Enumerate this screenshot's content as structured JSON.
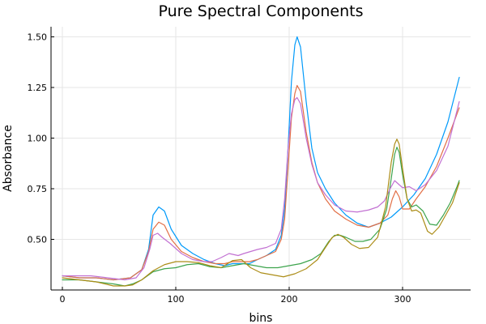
{
  "chart_data": {
    "type": "line",
    "title": "Pure Spectral Components",
    "xlabel": "bins",
    "ylabel": "Absorbance",
    "xlim": [
      -10,
      360
    ],
    "ylim": [
      0.25,
      1.55
    ],
    "xticks": [
      0,
      100,
      200,
      300
    ],
    "yticks": [
      0.5,
      0.75,
      1.0,
      1.25,
      1.5
    ],
    "xtick_labels": [
      "0",
      "100",
      "200",
      "300"
    ],
    "ytick_labels": [
      "0.50",
      "0.75",
      "1.00",
      "1.25",
      "1.50"
    ],
    "grid": true,
    "legend": "none",
    "series": [
      {
        "color": "#009AFA",
        "points": [
          [
            0,
            0.32
          ],
          [
            15,
            0.31
          ],
          [
            30,
            0.31
          ],
          [
            45,
            0.3
          ],
          [
            60,
            0.31
          ],
          [
            70,
            0.35
          ],
          [
            76,
            0.45
          ],
          [
            80,
            0.62
          ],
          [
            85,
            0.66
          ],
          [
            90,
            0.64
          ],
          [
            96,
            0.55
          ],
          [
            105,
            0.47
          ],
          [
            115,
            0.43
          ],
          [
            125,
            0.4
          ],
          [
            135,
            0.38
          ],
          [
            143,
            0.37
          ],
          [
            150,
            0.38
          ],
          [
            158,
            0.38
          ],
          [
            165,
            0.38
          ],
          [
            172,
            0.4
          ],
          [
            180,
            0.42
          ],
          [
            188,
            0.45
          ],
          [
            193,
            0.52
          ],
          [
            196,
            0.65
          ],
          [
            199,
            0.95
          ],
          [
            202,
            1.28
          ],
          [
            205,
            1.46
          ],
          [
            207,
            1.5
          ],
          [
            210,
            1.45
          ],
          [
            215,
            1.18
          ],
          [
            220,
            0.95
          ],
          [
            225,
            0.83
          ],
          [
            232,
            0.75
          ],
          [
            240,
            0.68
          ],
          [
            250,
            0.62
          ],
          [
            260,
            0.58
          ],
          [
            270,
            0.56
          ],
          [
            280,
            0.58
          ],
          [
            290,
            0.61
          ],
          [
            300,
            0.66
          ],
          [
            310,
            0.72
          ],
          [
            320,
            0.8
          ],
          [
            330,
            0.92
          ],
          [
            340,
            1.08
          ],
          [
            350,
            1.3
          ]
        ]
      },
      {
        "color": "#E26F46",
        "points": [
          [
            0,
            0.32
          ],
          [
            15,
            0.31
          ],
          [
            30,
            0.31
          ],
          [
            45,
            0.3
          ],
          [
            60,
            0.31
          ],
          [
            70,
            0.35
          ],
          [
            76,
            0.44
          ],
          [
            80,
            0.55
          ],
          [
            85,
            0.585
          ],
          [
            90,
            0.57
          ],
          [
            96,
            0.5
          ],
          [
            105,
            0.44
          ],
          [
            115,
            0.41
          ],
          [
            125,
            0.39
          ],
          [
            135,
            0.38
          ],
          [
            143,
            0.38
          ],
          [
            150,
            0.39
          ],
          [
            158,
            0.39
          ],
          [
            165,
            0.39
          ],
          [
            172,
            0.4
          ],
          [
            180,
            0.42
          ],
          [
            188,
            0.44
          ],
          [
            193,
            0.5
          ],
          [
            196,
            0.6
          ],
          [
            199,
            0.85
          ],
          [
            202,
            1.1
          ],
          [
            205,
            1.22
          ],
          [
            207,
            1.26
          ],
          [
            210,
            1.23
          ],
          [
            215,
            1.03
          ],
          [
            220,
            0.88
          ],
          [
            225,
            0.78
          ],
          [
            232,
            0.7
          ],
          [
            240,
            0.64
          ],
          [
            250,
            0.6
          ],
          [
            260,
            0.57
          ],
          [
            270,
            0.56
          ],
          [
            280,
            0.58
          ],
          [
            287,
            0.62
          ],
          [
            291,
            0.7
          ],
          [
            294,
            0.74
          ],
          [
            297,
            0.71
          ],
          [
            300,
            0.65
          ],
          [
            306,
            0.65
          ],
          [
            312,
            0.7
          ],
          [
            320,
            0.76
          ],
          [
            330,
            0.86
          ],
          [
            340,
            1.0
          ],
          [
            350,
            1.15
          ]
        ]
      },
      {
        "color": "#3DA44D",
        "points": [
          [
            0,
            0.3
          ],
          [
            15,
            0.3
          ],
          [
            30,
            0.29
          ],
          [
            45,
            0.28
          ],
          [
            55,
            0.27
          ],
          [
            62,
            0.28
          ],
          [
            70,
            0.3
          ],
          [
            80,
            0.34
          ],
          [
            90,
            0.355
          ],
          [
            100,
            0.36
          ],
          [
            110,
            0.375
          ],
          [
            120,
            0.38
          ],
          [
            130,
            0.365
          ],
          [
            140,
            0.36
          ],
          [
            150,
            0.37
          ],
          [
            160,
            0.38
          ],
          [
            170,
            0.37
          ],
          [
            180,
            0.36
          ],
          [
            190,
            0.36
          ],
          [
            200,
            0.37
          ],
          [
            210,
            0.38
          ],
          [
            220,
            0.4
          ],
          [
            228,
            0.43
          ],
          [
            235,
            0.49
          ],
          [
            240,
            0.52
          ],
          [
            245,
            0.52
          ],
          [
            250,
            0.51
          ],
          [
            258,
            0.49
          ],
          [
            265,
            0.49
          ],
          [
            272,
            0.5
          ],
          [
            280,
            0.55
          ],
          [
            286,
            0.65
          ],
          [
            290,
            0.8
          ],
          [
            293,
            0.92
          ],
          [
            295,
            0.955
          ],
          [
            297,
            0.93
          ],
          [
            300,
            0.82
          ],
          [
            304,
            0.7
          ],
          [
            308,
            0.66
          ],
          [
            312,
            0.67
          ],
          [
            318,
            0.64
          ],
          [
            324,
            0.575
          ],
          [
            330,
            0.57
          ],
          [
            336,
            0.62
          ],
          [
            342,
            0.68
          ],
          [
            348,
            0.76
          ],
          [
            350,
            0.79
          ]
        ]
      },
      {
        "color": "#C271D2",
        "points": [
          [
            0,
            0.32
          ],
          [
            12,
            0.32
          ],
          [
            25,
            0.32
          ],
          [
            40,
            0.31
          ],
          [
            55,
            0.3
          ],
          [
            65,
            0.31
          ],
          [
            72,
            0.36
          ],
          [
            77,
            0.45
          ],
          [
            80,
            0.52
          ],
          [
            84,
            0.53
          ],
          [
            88,
            0.51
          ],
          [
            95,
            0.48
          ],
          [
            105,
            0.43
          ],
          [
            115,
            0.4
          ],
          [
            125,
            0.39
          ],
          [
            132,
            0.39
          ],
          [
            140,
            0.41
          ],
          [
            147,
            0.43
          ],
          [
            155,
            0.42
          ],
          [
            160,
            0.43
          ],
          [
            166,
            0.44
          ],
          [
            172,
            0.45
          ],
          [
            180,
            0.46
          ],
          [
            188,
            0.48
          ],
          [
            193,
            0.55
          ],
          [
            196,
            0.7
          ],
          [
            199,
            0.95
          ],
          [
            202,
            1.12
          ],
          [
            205,
            1.19
          ],
          [
            207,
            1.2
          ],
          [
            210,
            1.17
          ],
          [
            215,
            1.0
          ],
          [
            220,
            0.87
          ],
          [
            225,
            0.78
          ],
          [
            232,
            0.72
          ],
          [
            240,
            0.67
          ],
          [
            250,
            0.64
          ],
          [
            260,
            0.635
          ],
          [
            270,
            0.645
          ],
          [
            278,
            0.66
          ],
          [
            284,
            0.69
          ],
          [
            289,
            0.75
          ],
          [
            293,
            0.79
          ],
          [
            297,
            0.77
          ],
          [
            300,
            0.755
          ],
          [
            306,
            0.76
          ],
          [
            312,
            0.74
          ],
          [
            320,
            0.77
          ],
          [
            330,
            0.84
          ],
          [
            340,
            0.96
          ],
          [
            350,
            1.18
          ]
        ]
      },
      {
        "color": "#AC8D18",
        "points": [
          [
            0,
            0.31
          ],
          [
            15,
            0.3
          ],
          [
            30,
            0.29
          ],
          [
            45,
            0.27
          ],
          [
            55,
            0.27
          ],
          [
            62,
            0.275
          ],
          [
            70,
            0.3
          ],
          [
            80,
            0.345
          ],
          [
            90,
            0.375
          ],
          [
            100,
            0.39
          ],
          [
            110,
            0.39
          ],
          [
            120,
            0.385
          ],
          [
            130,
            0.37
          ],
          [
            140,
            0.36
          ],
          [
            150,
            0.395
          ],
          [
            158,
            0.4
          ],
          [
            166,
            0.36
          ],
          [
            175,
            0.335
          ],
          [
            185,
            0.325
          ],
          [
            195,
            0.315
          ],
          [
            205,
            0.33
          ],
          [
            215,
            0.355
          ],
          [
            225,
            0.4
          ],
          [
            232,
            0.46
          ],
          [
            238,
            0.51
          ],
          [
            243,
            0.525
          ],
          [
            248,
            0.51
          ],
          [
            255,
            0.475
          ],
          [
            262,
            0.455
          ],
          [
            270,
            0.46
          ],
          [
            278,
            0.51
          ],
          [
            285,
            0.66
          ],
          [
            290,
            0.88
          ],
          [
            293,
            0.97
          ],
          [
            295,
            0.995
          ],
          [
            297,
            0.97
          ],
          [
            300,
            0.85
          ],
          [
            304,
            0.7
          ],
          [
            308,
            0.64
          ],
          [
            312,
            0.645
          ],
          [
            316,
            0.63
          ],
          [
            322,
            0.54
          ],
          [
            326,
            0.525
          ],
          [
            332,
            0.56
          ],
          [
            338,
            0.62
          ],
          [
            344,
            0.68
          ],
          [
            350,
            0.78
          ]
        ]
      }
    ]
  }
}
